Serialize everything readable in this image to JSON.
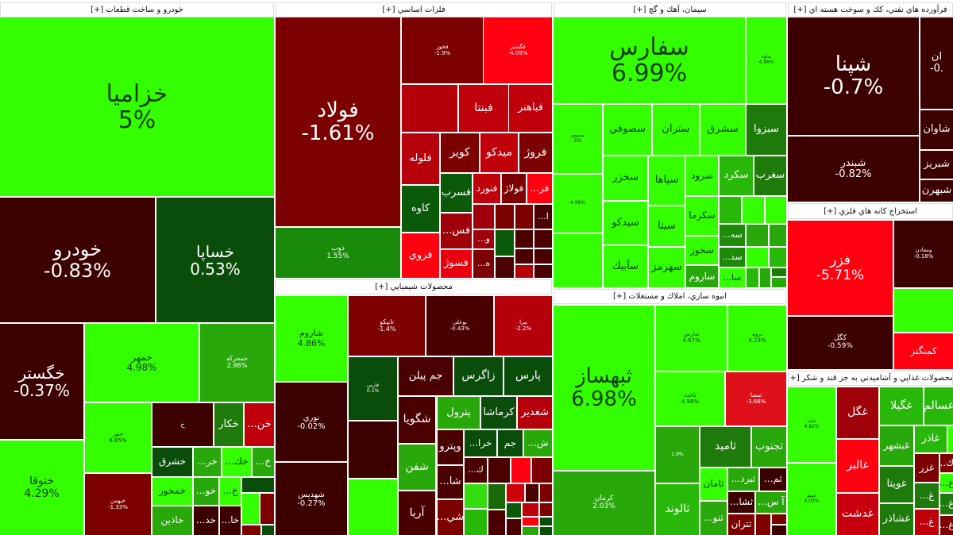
{
  "sectors": [
    {
      "title": "خودرو و ساخت قطعات [+]",
      "tiles": [
        {
          "symbol": "خزاميا",
          "change": "5%",
          "color": "#33ff00"
        },
        {
          "symbol": "خودرو",
          "change": "-0.83%",
          "color": "#3d0000"
        },
        {
          "symbol": "خساپا",
          "change": "0.53%",
          "color": "#0a4d0a"
        },
        {
          "symbol": "خگستر",
          "change": "-0.37%",
          "color": "#3d0000"
        },
        {
          "symbol": "ختوقا",
          "change": "4.29%",
          "color": "#33ff00"
        },
        {
          "symbol": "خمهر",
          "change": "4.98%",
          "color": "#33ff00"
        },
        {
          "symbol": "خمحركه",
          "change": "2.96%",
          "color": "#28a80a"
        },
        {
          "symbol": "خنور",
          "change": "6.85%",
          "color": "#33ff00"
        },
        {
          "symbol": "خبهمن",
          "change": "-1.33%",
          "color": "#7d0000"
        },
        {
          "symbol": "خ",
          "change": "",
          "color": "#3d0000"
        },
        {
          "symbol": "خكار",
          "change": "",
          "color": "#1e7a0a"
        },
        {
          "symbol": "...خن",
          "change": "",
          "color": "#c0000a"
        },
        {
          "symbol": "خشرق",
          "change": "",
          "color": "#0a4d0a"
        },
        {
          "symbol": "...خر",
          "change": "",
          "color": "#28a80a"
        },
        {
          "symbol": "...خك",
          "change": "",
          "color": "#33ff00"
        },
        {
          "symbol": "...خ",
          "change": "",
          "color": "#28a80a"
        },
        {
          "symbol": "خمحور",
          "change": "",
          "color": "#33ff00"
        },
        {
          "symbol": "...خو",
          "change": "",
          "color": "#28a80a"
        },
        {
          "symbol": "...خ",
          "change": "",
          "color": "#33ff00"
        },
        {
          "symbol": "",
          "change": "",
          "color": "#0a4d0a"
        },
        {
          "symbol": "",
          "change": "",
          "color": "#33ff00"
        },
        {
          "symbol": "",
          "change": "",
          "color": "#7d0000"
        },
        {
          "symbol": "خاذين",
          "change": "",
          "color": "#28a80a"
        },
        {
          "symbol": "...خد",
          "change": "",
          "color": "#3d0000"
        },
        {
          "symbol": "...خا",
          "change": "",
          "color": "#3d0000"
        },
        {
          "symbol": "",
          "change": "",
          "color": "#7d0000"
        },
        {
          "symbol": "",
          "change": "",
          "color": "#0a4d0a"
        }
      ]
    },
    {
      "title": "فلزات اساسي [+]",
      "tiles": [
        {
          "symbol": "فولاد",
          "change": "-1.61%",
          "color": "#7d0000"
        },
        {
          "symbol": "ذوب",
          "change": "1.55%",
          "color": "#1a8a0a"
        },
        {
          "symbol": "فخوز",
          "change": "-1.9%",
          "color": "#7d0000"
        },
        {
          "symbol": "فگستر",
          "change": "-4.09%",
          "color": "#ff0010"
        },
        {
          "symbol": "",
          "change": "",
          "color": "#b5000c"
        },
        {
          "symbol": "فبنتا",
          "change": "",
          "color": "#c0000a"
        },
        {
          "symbol": "فباهنر",
          "change": "",
          "color": "#c0000a"
        },
        {
          "symbol": "فلوله",
          "change": "",
          "color": "#b5000c"
        },
        {
          "symbol": "كوير",
          "change": "",
          "color": "#7d0000"
        },
        {
          "symbol": "ميدكو",
          "change": "",
          "color": "#c0000a"
        },
        {
          "symbol": "فروژ",
          "change": "",
          "color": "#7d0000"
        },
        {
          "symbol": "كاوه",
          "change": "",
          "color": "#0a5a0a"
        },
        {
          "symbol": "فروي",
          "change": "",
          "color": "#ff0010"
        },
        {
          "symbol": "فسرب",
          "change": "",
          "color": "#0a5a0a"
        },
        {
          "symbol": "...فس",
          "change": "",
          "color": "#a0000a"
        },
        {
          "symbol": "فسوژ",
          "change": "",
          "color": "#e8000e"
        },
        {
          "symbol": "فنورد",
          "change": "",
          "color": "#c0000a"
        },
        {
          "symbol": "فولاژ",
          "change": "",
          "color": "#7d0000"
        },
        {
          "symbol": "...فز",
          "change": "",
          "color": "#ff0010"
        },
        {
          "symbol": "",
          "change": "",
          "color": "#a0000a"
        },
        {
          "symbol": "",
          "change": "",
          "color": "#7d0000"
        },
        {
          "symbol": "",
          "change": "",
          "color": "#7d0000"
        },
        {
          "symbol": "...ا",
          "change": "",
          "color": "#4a0000"
        },
        {
          "symbol": "...و",
          "change": "",
          "color": "#a0000a"
        },
        {
          "symbol": "",
          "change": "",
          "color": "#0a5a0a"
        },
        {
          "symbol": "",
          "change": "",
          "color": "#4a0000"
        },
        {
          "symbol": "",
          "change": "",
          "color": "#4a0000"
        },
        {
          "symbol": "...ه",
          "change": "",
          "color": "#7d0000"
        },
        {
          "symbol": "",
          "change": "",
          "color": "#4a0000"
        },
        {
          "symbol": "",
          "change": "",
          "color": "#4a0000"
        },
        {
          "symbol": "",
          "change": "",
          "color": "#4a0000"
        },
        {
          "symbol": "",
          "change": "",
          "color": "#b5000c"
        },
        {
          "symbol": "",
          "change": "",
          "color": "#4a0000"
        }
      ]
    },
    {
      "title": "سيمان، آهك و گچ [+]",
      "tiles": [
        {
          "symbol": "سفارس",
          "change": "6.99%",
          "color": "#33ff00"
        },
        {
          "symbol": "ساوه",
          "change": "4.96%",
          "color": "#33ff00"
        },
        {
          "symbol": "سميمو",
          "change": "5%",
          "color": "#33ff00"
        },
        {
          "symbol": "",
          "change": "4.98%",
          "color": "#33ff00"
        },
        {
          "symbol": "",
          "change": "",
          "color": "#33ff00"
        },
        {
          "symbol": "سصوفي",
          "change": "",
          "color": "#33ff00"
        },
        {
          "symbol": "ستران",
          "change": "",
          "color": "#33ff00"
        },
        {
          "symbol": "سشرق",
          "change": "",
          "color": "#33ff00"
        },
        {
          "symbol": "سبزوا",
          "change": "",
          "color": "#1e7a0a"
        },
        {
          "symbol": "سخزر",
          "change": "",
          "color": "#33ff00"
        },
        {
          "symbol": "سيدكو",
          "change": "",
          "color": "#33ff00"
        },
        {
          "symbol": "سآبيك",
          "change": "",
          "color": "#33ff00"
        },
        {
          "symbol": "سپاها",
          "change": "",
          "color": "#33ff00"
        },
        {
          "symbol": "سيتا",
          "change": "",
          "color": "#33ff00"
        },
        {
          "symbol": "سهرمز",
          "change": "",
          "color": "#33ff00"
        },
        {
          "symbol": "سرود",
          "change": "",
          "color": "#33ff00"
        },
        {
          "symbol": "سكرما",
          "change": "",
          "color": "#33ff00"
        },
        {
          "symbol": "سخوز",
          "change": "",
          "color": "#33ff00"
        },
        {
          "symbol": "ساروم",
          "change": "",
          "color": "#28a80a"
        },
        {
          "symbol": "سكرد",
          "change": "",
          "color": "#28b80a"
        },
        {
          "symbol": "سغرب",
          "change": "",
          "color": "#1e7a0a"
        },
        {
          "symbol": "",
          "change": "",
          "color": "#28b80a"
        },
        {
          "symbol": "",
          "change": "",
          "color": "#33ff00"
        },
        {
          "symbol": "",
          "change": "",
          "color": "#33ff00"
        },
        {
          "symbol": "...سه",
          "change": "",
          "color": "#1e8a0a"
        },
        {
          "symbol": "",
          "change": "",
          "color": "#28a80a"
        },
        {
          "symbol": "",
          "change": "",
          "color": "#28a80a"
        },
        {
          "symbol": "...سد",
          "change": "",
          "color": "#1e8a0a"
        },
        {
          "symbol": "",
          "change": "",
          "color": "#33ff00"
        },
        {
          "symbol": "",
          "change": "",
          "color": "#28b80a"
        },
        {
          "symbol": "...سا",
          "change": "",
          "color": "#33ff00"
        },
        {
          "symbol": "",
          "change": "",
          "color": "#28b80a"
        },
        {
          "symbol": "",
          "change": "",
          "color": "#28a80a"
        },
        {
          "symbol": "",
          "change": "",
          "color": "#1e7a0a"
        },
        {
          "symbol": "",
          "change": "",
          "color": "#28a80a"
        }
      ]
    },
    {
      "title": "فرآورده هاي نفتي، كك و سوخت هسته اي [+]",
      "tiles": [
        {
          "symbol": "شپنا",
          "change": "-0.7%",
          "color": "#3d0000"
        },
        {
          "symbol": "شبندر",
          "change": "-0.82%",
          "color": "#3d0000"
        },
        {
          "symbol": "ان",
          "change": "-0.",
          "color": "#3d0000"
        },
        {
          "symbol": "شاوان",
          "change": "",
          "color": "#3d0000"
        },
        {
          "symbol": "شبريز",
          "change": "",
          "color": "#3d0000"
        },
        {
          "symbol": "شبهرن",
          "change": "",
          "color": "#3d0000"
        }
      ]
    },
    {
      "title": "استخراج كانه هاي فلزي [+]",
      "tiles": [
        {
          "symbol": "فزر",
          "change": "-5.71%",
          "color": "#ff0010"
        },
        {
          "symbol": "ومعادن",
          "change": "-0.18%",
          "color": "#3d0000"
        },
        {
          "symbol": "",
          "change": "",
          "color": "#33ff00"
        },
        {
          "symbol": "كگل",
          "change": "-0.59%",
          "color": "#3d0000"
        },
        {
          "symbol": "كمنگنز",
          "change": "",
          "color": "#ff0010"
        }
      ]
    },
    {
      "title": "محصولات شيميايي [+]",
      "tiles": [
        {
          "symbol": "شاروم",
          "change": "4.86%",
          "color": "#33ff00"
        },
        {
          "symbol": "نوري",
          "change": "-0.02%",
          "color": "#3d0000"
        },
        {
          "symbol": "شهديس",
          "change": "-0.27%",
          "color": "#3d0000"
        },
        {
          "symbol": "تاپيكو",
          "change": "-1.4%",
          "color": "#7d0000"
        },
        {
          "symbol": "بوعلي",
          "change": "-0.43%",
          "color": "#4a0000"
        },
        {
          "symbol": "بيرا",
          "change": "-2.2%",
          "color": "#b5000c"
        },
        {
          "symbol": "فارس",
          "change": "0.1%",
          "color": "#0a4d0a"
        },
        {
          "symbol": "",
          "change": "",
          "color": "#3d0000"
        },
        {
          "symbol": "",
          "change": "",
          "color": "#33ff00"
        },
        {
          "symbol": "جم پيلن",
          "change": "",
          "color": "#4a0000"
        },
        {
          "symbol": "زاگرس",
          "change": "",
          "color": "#0a4d0a"
        },
        {
          "symbol": "پارس",
          "change": "",
          "color": "#0a4d0a"
        },
        {
          "symbol": "شگويا",
          "change": "",
          "color": "#4a0000"
        },
        {
          "symbol": "شفن",
          "change": "",
          "color": "#28a80a"
        },
        {
          "symbol": "آريا",
          "change": "",
          "color": "#4a0000"
        },
        {
          "symbol": "پترول",
          "change": "",
          "color": "#28a80a"
        },
        {
          "symbol": "كرماشا",
          "change": "",
          "color": "#0a4d0a"
        },
        {
          "symbol": "شغدير",
          "change": "",
          "color": "#b5000c"
        },
        {
          "symbol": "...خرا",
          "change": "",
          "color": "#0a4d0a"
        },
        {
          "symbol": "جم",
          "change": "",
          "color": "#0a4d0a"
        },
        {
          "symbol": "...ش",
          "change": "",
          "color": "#28a80a"
        },
        {
          "symbol": "وپترو",
          "change": "",
          "color": "#4a0000"
        },
        {
          "symbol": "...شا",
          "change": "",
          "color": "#4a0000"
        },
        {
          "symbol": "...شي",
          "change": "",
          "color": "#7d0000"
        },
        {
          "symbol": "...ك",
          "change": "",
          "color": "#4a0000"
        },
        {
          "symbol": "",
          "change": "",
          "color": "#4a0000"
        },
        {
          "symbol": "",
          "change": "",
          "color": "#ff0010"
        },
        {
          "symbol": "",
          "change": "",
          "color": "#7d0000"
        },
        {
          "symbol": "",
          "change": "",
          "color": "#33dd10"
        },
        {
          "symbol": "",
          "change": "",
          "color": "#1a6a0a"
        },
        {
          "symbol": "",
          "change": "",
          "color": "#d0000a"
        },
        {
          "symbol": "",
          "change": "",
          "color": "#4a0000"
        },
        {
          "symbol": "",
          "change": "",
          "color": "#7d0000"
        },
        {
          "symbol": "",
          "change": "",
          "color": "#28b80a"
        },
        {
          "symbol": "",
          "change": "",
          "color": "#4a0000"
        },
        {
          "symbol": "",
          "change": "",
          "color": "#0a5a0a"
        },
        {
          "symbol": "",
          "change": "",
          "color": "#c0000a"
        },
        {
          "symbol": "",
          "change": "",
          "color": "#7d0000"
        },
        {
          "symbol": "",
          "change": "",
          "color": "#ff0010"
        },
        {
          "symbol": "",
          "change": "",
          "color": "#0a4d0a"
        },
        {
          "symbol": "",
          "change": "",
          "color": "#4a0000"
        },
        {
          "symbol": "",
          "change": "",
          "color": "#28a80a"
        },
        {
          "symbol": "",
          "change": "",
          "color": "#0a4d0a"
        }
      ]
    },
    {
      "title": "انبوه سازي، املاك و مستغلات [+]",
      "tiles": [
        {
          "symbol": "ثبهساز",
          "change": "6.98%",
          "color": "#33ff00"
        },
        {
          "symbol": "كرمان",
          "change": "2.03%",
          "color": "#28a80a"
        },
        {
          "symbol": "ثفارس",
          "change": "4.67%",
          "color": "#33ff00"
        },
        {
          "symbol": "ثروه",
          "change": "5.23%",
          "color": "#33ff00"
        },
        {
          "symbol": "ثاخت",
          "change": "4.98%",
          "color": "#33ff00"
        },
        {
          "symbol": "ثمسا",
          "change": "-3.66%",
          "color": "#e0101a"
        },
        {
          "symbol": "",
          "change": "1.9%",
          "color": "#28a80a"
        },
        {
          "symbol": "ثاميد",
          "change": "",
          "color": "#1e7a0a"
        },
        {
          "symbol": "ثجنوب",
          "change": "",
          "color": "#28a80a"
        },
        {
          "symbol": "ثالوند",
          "change": "",
          "color": "#28b80a"
        },
        {
          "symbol": "ثامان",
          "change": "",
          "color": "#33ff00"
        },
        {
          "symbol": "...ثنو",
          "change": "",
          "color": "#28a80a"
        },
        {
          "symbol": "...ثبرد",
          "change": "",
          "color": "#28a80a"
        },
        {
          "symbol": "...ثم",
          "change": "",
          "color": "#3d0000"
        },
        {
          "symbol": "...ثشا",
          "change": "",
          "color": "#3d0000"
        },
        {
          "symbol": "...آ س",
          "change": "",
          "color": "#28a80a"
        },
        {
          "symbol": "ثتران",
          "change": "",
          "color": "#7d0000"
        },
        {
          "symbol": "",
          "change": "",
          "color": "#7d0000"
        },
        {
          "symbol": "",
          "change": "",
          "color": "#7d0000"
        },
        {
          "symbol": "",
          "change": "",
          "color": "#3d0000"
        }
      ]
    },
    {
      "title": "محصولات غذايي و آشاميدني به جز قند و شكر [+]",
      "tiles": [
        {
          "symbol": "غنابه",
          "change": "4.82%",
          "color": "#33ff00"
        },
        {
          "symbol": "غپينو",
          "change": "4.03%",
          "color": "#33ff00"
        },
        {
          "symbol": "غگل",
          "change": "",
          "color": "#a0000a"
        },
        {
          "symbol": "غالبر",
          "change": "",
          "color": "#ff0010"
        },
        {
          "symbol": "غدشت",
          "change": "",
          "color": "#c8000e"
        },
        {
          "symbol": "غگيلا",
          "change": "",
          "color": "#28b80a"
        },
        {
          "symbol": "غسالم",
          "change": "",
          "color": "#28b80a"
        },
        {
          "symbol": "غبشهر",
          "change": "",
          "color": "#28a80a"
        },
        {
          "symbol": "غاذر",
          "change": "",
          "color": "#28b80a"
        },
        {
          "symbol": "",
          "change": "",
          "color": "#33ff00"
        },
        {
          "symbol": "غويتا",
          "change": "",
          "color": "#1e7a0a"
        },
        {
          "symbol": "غشاذر",
          "change": "",
          "color": "#1e7a0a"
        },
        {
          "symbol": "غزر",
          "change": "",
          "color": "#7d0000"
        },
        {
          "symbol": "...غ",
          "change": "",
          "color": "#1e7a0a"
        },
        {
          "symbol": "...غ",
          "change": "",
          "color": "#c0000a"
        },
        {
          "symbol": "...اك",
          "change": "",
          "color": "#7d0000"
        },
        {
          "symbol": "...غ",
          "change": "",
          "color": "#33ff00"
        },
        {
          "symbol": "...غ",
          "change": "",
          "color": "#1e7a0a"
        },
        {
          "symbol": "...غ",
          "change": "",
          "color": "#7d0000"
        }
      ]
    }
  ]
}
